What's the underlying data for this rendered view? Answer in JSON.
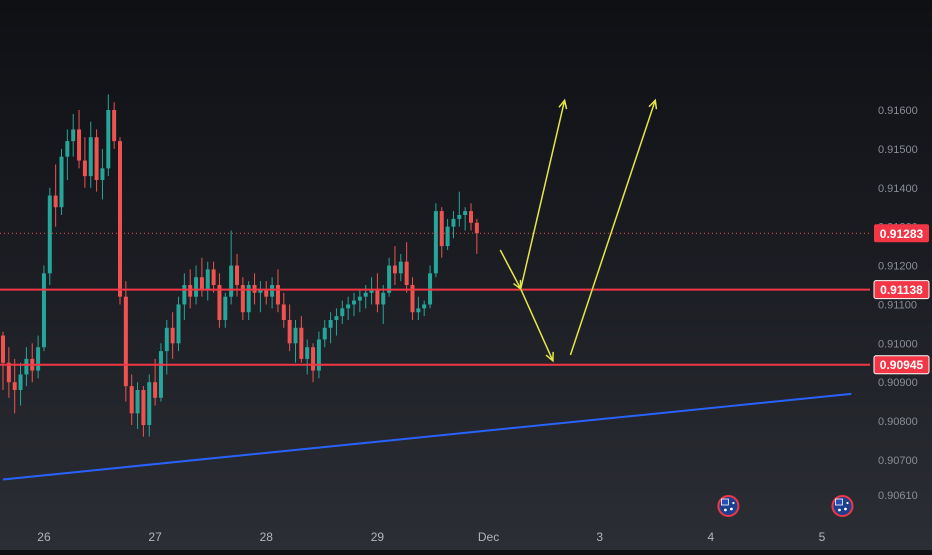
{
  "chart_data": {
    "type": "candlestick",
    "y_axis": {
      "range": [
        0.9056,
        0.9166
      ],
      "tick_labels": [
        "0.91600",
        "0.91500",
        "0.91400",
        "0.91300",
        "0.91200",
        "0.91100",
        "0.91000",
        "0.90900",
        "0.90800",
        "0.90700",
        "0.90610"
      ],
      "tick_values": [
        0.916,
        0.915,
        0.914,
        0.913,
        0.912,
        0.911,
        0.91,
        0.909,
        0.908,
        0.907,
        0.9061
      ]
    },
    "x_axis": {
      "tick_labels": [
        "26",
        "27",
        "28",
        "29",
        "Dec",
        "3",
        "4",
        "5"
      ],
      "tick_index": [
        7,
        26,
        45,
        64,
        83,
        102,
        121,
        140
      ]
    },
    "price_labels": [
      {
        "text": "0.91283",
        "value": 0.91283,
        "style": "current"
      },
      {
        "text": "0.91138",
        "value": 0.91138,
        "style": "level"
      },
      {
        "text": "0.90945",
        "value": 0.90945,
        "style": "level"
      }
    ],
    "horizontal_levels": [
      {
        "value": 0.91138,
        "color": "#f23645"
      },
      {
        "value": 0.90945,
        "color": "#f23645"
      }
    ],
    "current_price": 0.91283,
    "trendline": {
      "color": "#2962ff",
      "start": {
        "index": 0,
        "value": 0.9065
      },
      "end": {
        "index": 145,
        "value": 0.9087
      }
    },
    "projection_arrows": {
      "color": "#e6e64a",
      "segments": [
        {
          "from": {
            "index": 85,
            "value": 0.9124
          },
          "to": {
            "index": 88.5,
            "value": 0.9114
          }
        },
        {
          "from": {
            "index": 88.5,
            "value": 0.9114
          },
          "to": {
            "index": 96,
            "value": 0.91625
          }
        },
        {
          "from": {
            "index": 88.5,
            "value": 0.9114
          },
          "to": {
            "index": 94,
            "value": 0.90955
          }
        },
        {
          "from": {
            "index": 97,
            "value": 0.9097
          },
          "to": {
            "index": 111.5,
            "value": 0.91625
          }
        }
      ]
    },
    "event_markers": [
      {
        "index": 124,
        "icon": "australia-flag-icon"
      },
      {
        "index": 143.5,
        "icon": "australia-flag-icon"
      }
    ],
    "candles": [
      [
        0.9102,
        0.9103,
        0.9088,
        0.9095
      ],
      [
        0.9095,
        0.9099,
        0.9086,
        0.909
      ],
      [
        0.909,
        0.9096,
        0.9082,
        0.9088
      ],
      [
        0.9088,
        0.9095,
        0.9084,
        0.9092
      ],
      [
        0.9092,
        0.9099,
        0.9089,
        0.9096
      ],
      [
        0.9096,
        0.91,
        0.909,
        0.9093
      ],
      [
        0.9093,
        0.9102,
        0.9091,
        0.9099
      ],
      [
        0.9099,
        0.912,
        0.9098,
        0.9118
      ],
      [
        0.9118,
        0.914,
        0.9115,
        0.9138
      ],
      [
        0.9138,
        0.9146,
        0.913,
        0.9135
      ],
      [
        0.9135,
        0.915,
        0.9133,
        0.9148
      ],
      [
        0.9148,
        0.9155,
        0.9142,
        0.9152
      ],
      [
        0.9152,
        0.9159,
        0.9148,
        0.9155
      ],
      [
        0.9155,
        0.916,
        0.9145,
        0.9147
      ],
      [
        0.9147,
        0.9153,
        0.914,
        0.9143
      ],
      [
        0.9143,
        0.9157,
        0.914,
        0.9153
      ],
      [
        0.9153,
        0.9155,
        0.9139,
        0.9142
      ],
      [
        0.9142,
        0.915,
        0.9137,
        0.9145
      ],
      [
        0.9145,
        0.9164,
        0.9143,
        0.916
      ],
      [
        0.916,
        0.9162,
        0.915,
        0.9152
      ],
      [
        0.9152,
        0.9153,
        0.911,
        0.9112
      ],
      [
        0.9112,
        0.9116,
        0.9085,
        0.9089
      ],
      [
        0.9089,
        0.9092,
        0.9079,
        0.9082
      ],
      [
        0.9082,
        0.909,
        0.9078,
        0.9088
      ],
      [
        0.9088,
        0.9089,
        0.9076,
        0.9079
      ],
      [
        0.9079,
        0.9092,
        0.9076,
        0.909
      ],
      [
        0.909,
        0.9096,
        0.9084,
        0.9086
      ],
      [
        0.9086,
        0.91,
        0.9085,
        0.9098
      ],
      [
        0.9098,
        0.9106,
        0.9092,
        0.9104
      ],
      [
        0.9104,
        0.9108,
        0.9096,
        0.91
      ],
      [
        0.91,
        0.9112,
        0.9098,
        0.911
      ],
      [
        0.911,
        0.9118,
        0.9106,
        0.9115
      ],
      [
        0.9115,
        0.9119,
        0.9109,
        0.9112
      ],
      [
        0.9112,
        0.912,
        0.911,
        0.9117
      ],
      [
        0.9117,
        0.9122,
        0.9112,
        0.9114
      ],
      [
        0.9114,
        0.9121,
        0.9111,
        0.9119
      ],
      [
        0.9119,
        0.9121,
        0.9113,
        0.9115
      ],
      [
        0.9115,
        0.9118,
        0.9104,
        0.9106
      ],
      [
        0.9106,
        0.9113,
        0.9104,
        0.9112
      ],
      [
        0.9112,
        0.9129,
        0.911,
        0.912
      ],
      [
        0.912,
        0.9123,
        0.9112,
        0.9115
      ],
      [
        0.9115,
        0.9117,
        0.9106,
        0.9108
      ],
      [
        0.9108,
        0.9116,
        0.9106,
        0.9115
      ],
      [
        0.9115,
        0.9118,
        0.911,
        0.9113
      ],
      [
        0.9113,
        0.9116,
        0.9108,
        0.9114
      ],
      [
        0.9114,
        0.9116,
        0.911,
        0.9112
      ],
      [
        0.9112,
        0.9117,
        0.9109,
        0.9115
      ],
      [
        0.9115,
        0.9119,
        0.9108,
        0.911
      ],
      [
        0.911,
        0.9113,
        0.9104,
        0.9106
      ],
      [
        0.9106,
        0.911,
        0.9098,
        0.91
      ],
      [
        0.91,
        0.9106,
        0.9095,
        0.9104
      ],
      [
        0.9104,
        0.9107,
        0.9095,
        0.9096
      ],
      [
        0.9096,
        0.9101,
        0.9092,
        0.9099
      ],
      [
        0.9099,
        0.91,
        0.909,
        0.9093
      ],
      [
        0.9093,
        0.9103,
        0.9091,
        0.9101
      ],
      [
        0.9101,
        0.9106,
        0.9099,
        0.9104
      ],
      [
        0.9104,
        0.9108,
        0.91,
        0.9106
      ],
      [
        0.9106,
        0.9109,
        0.9102,
        0.9107
      ],
      [
        0.9107,
        0.9111,
        0.9105,
        0.9109
      ],
      [
        0.9109,
        0.9112,
        0.9106,
        0.911
      ],
      [
        0.911,
        0.9113,
        0.9107,
        0.9111
      ],
      [
        0.9111,
        0.9114,
        0.9108,
        0.9112
      ],
      [
        0.9112,
        0.9115,
        0.9109,
        0.9113
      ],
      [
        0.9113,
        0.9117,
        0.911,
        0.9114
      ],
      [
        0.9114,
        0.9118,
        0.9108,
        0.911
      ],
      [
        0.911,
        0.9115,
        0.9105,
        0.9113
      ],
      [
        0.9113,
        0.9122,
        0.9112,
        0.912
      ],
      [
        0.912,
        0.9125,
        0.9115,
        0.9118
      ],
      [
        0.9118,
        0.9123,
        0.9116,
        0.9121
      ],
      [
        0.9121,
        0.9126,
        0.9113,
        0.9115
      ],
      [
        0.9115,
        0.9117,
        0.9106,
        0.9108
      ],
      [
        0.9108,
        0.9112,
        0.9106,
        0.9109
      ],
      [
        0.9109,
        0.9111,
        0.9107,
        0.911
      ],
      [
        0.911,
        0.912,
        0.9109,
        0.9118
      ],
      [
        0.9118,
        0.9136,
        0.9117,
        0.9134
      ],
      [
        0.9134,
        0.9135,
        0.9122,
        0.9125
      ],
      [
        0.9125,
        0.9132,
        0.9124,
        0.913
      ],
      [
        0.913,
        0.9134,
        0.9127,
        0.9132
      ],
      [
        0.9132,
        0.9139,
        0.913,
        0.9133
      ],
      [
        0.9133,
        0.9135,
        0.9129,
        0.9134
      ],
      [
        0.9134,
        0.9136,
        0.9129,
        0.9131
      ],
      [
        0.9131,
        0.9132,
        0.9123,
        0.91283
      ]
    ]
  }
}
